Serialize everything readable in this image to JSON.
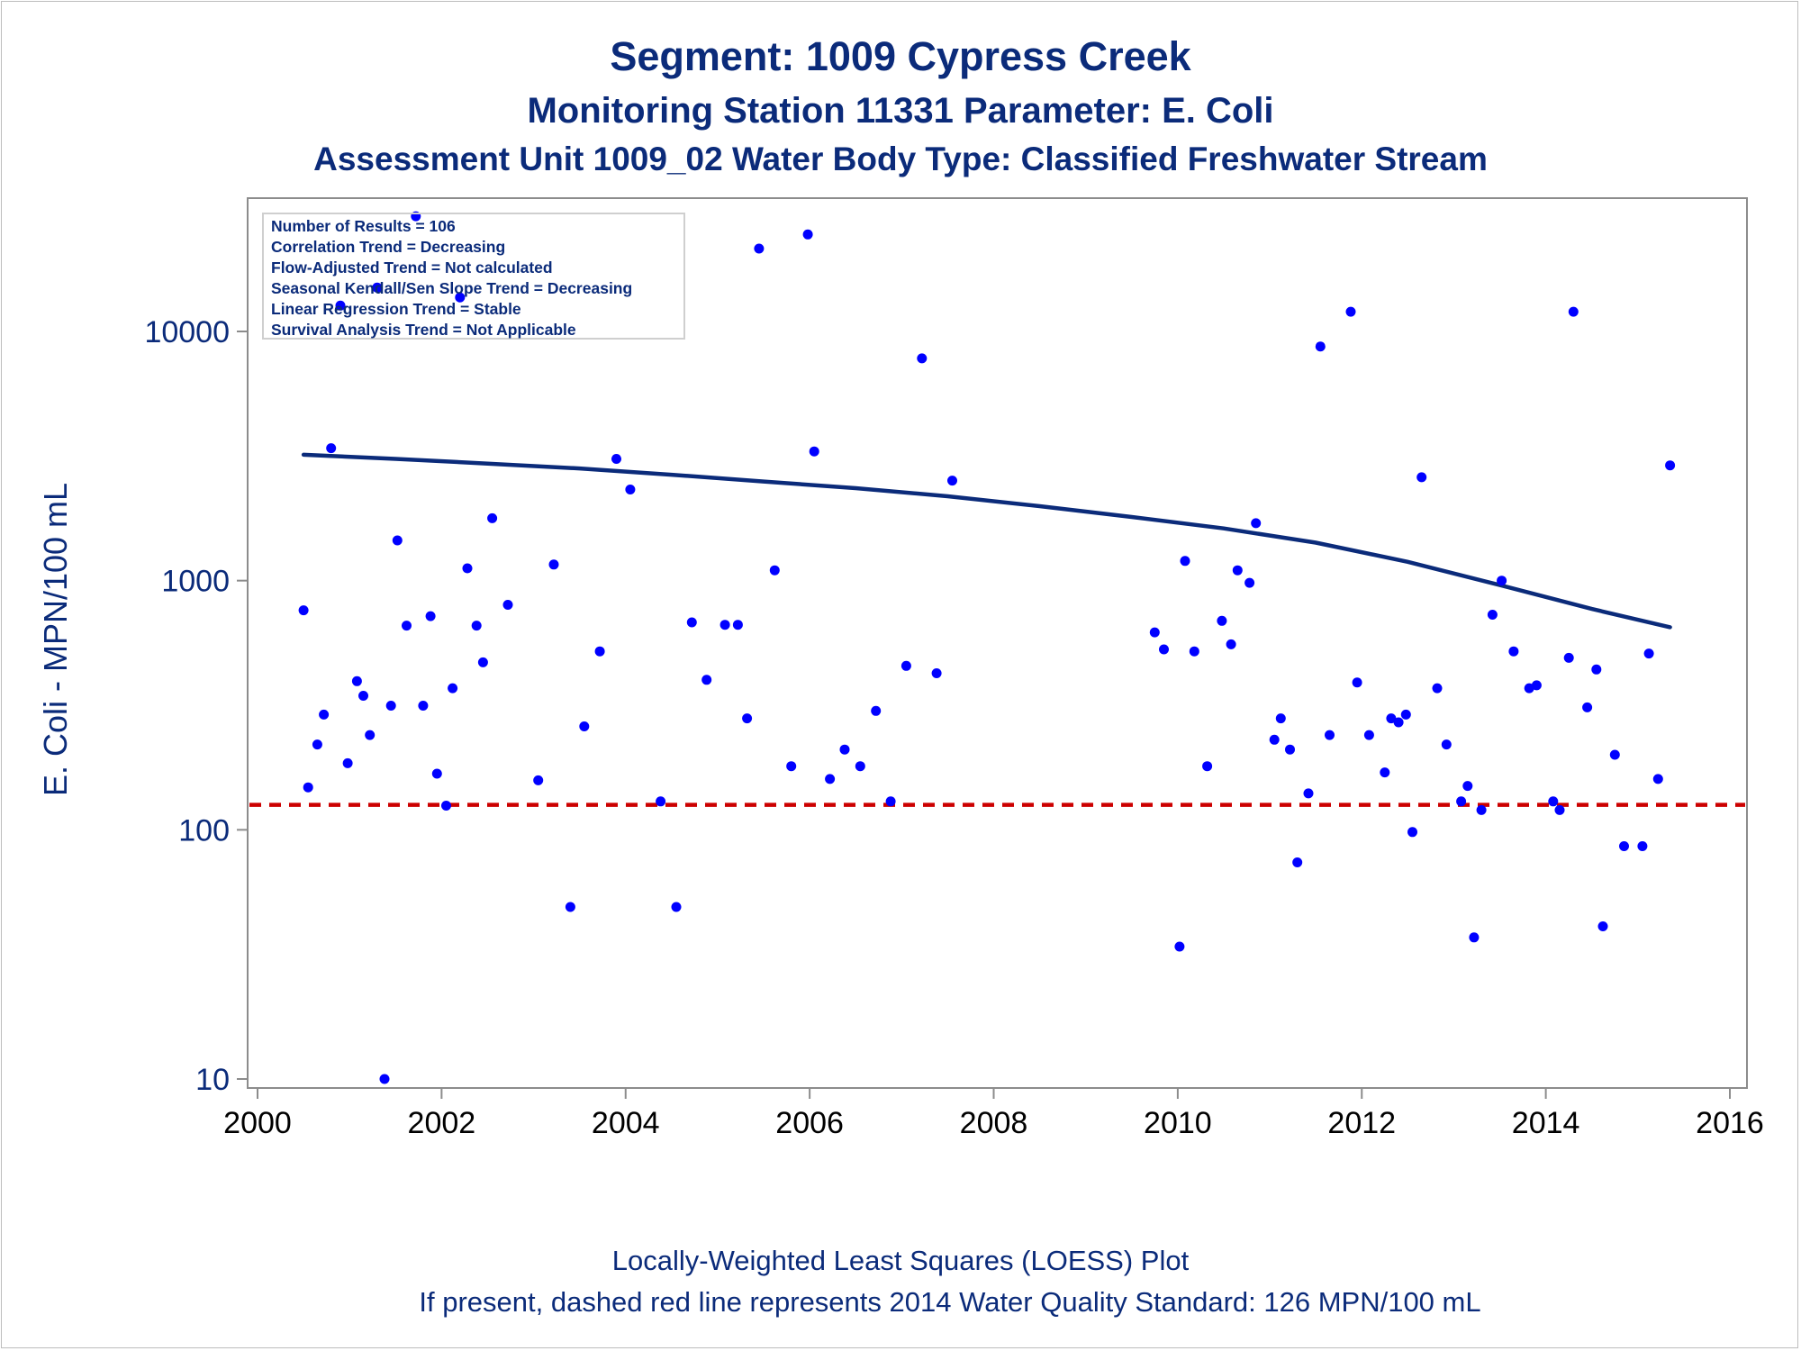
{
  "title": "Segment: 1009  Cypress Creek",
  "subtitle1": "Monitoring Station 11331 Parameter: E. Coli",
  "subtitle2": "Assessment Unit 1009_02   Water Body Type: Classified Freshwater Stream",
  "ylabel": "E. Coli - MPN/100 mL",
  "stats": [
    "Number of Results = 106",
    "Correlation Trend = Decreasing",
    "Flow-Adjusted Trend = Not calculated",
    "Seasonal Kendall/Sen Slope Trend = Decreasing",
    "Linear Regression Trend = Stable",
    "Survival Analysis Trend = Not Applicable"
  ],
  "footnotes": [
    "Locally-Weighted Least Squares (LOESS) Plot",
    "If present, dashed red line represents 2014 Water Quality Standard: 126 MPN/100 mL"
  ],
  "colors": {
    "points": "#0000ff",
    "loess": "#0b2b7a",
    "standard": "#cc0000",
    "text": "#0b2b7a",
    "axis": "#8c8c8c"
  },
  "chart_data": {
    "type": "scatter",
    "x_axis": {
      "type": "date",
      "range": [
        2000,
        2016
      ],
      "ticks": [
        2000,
        2002,
        2004,
        2006,
        2008,
        2010,
        2012,
        2014,
        2016
      ]
    },
    "y_axis": {
      "scale": "log",
      "range": [
        10,
        30000
      ],
      "ticks": [
        10,
        100,
        1000,
        10000
      ]
    },
    "standard_line": {
      "value": 126,
      "style": "dashed"
    },
    "loess": [
      [
        2000.5,
        3200
      ],
      [
        2001.5,
        3080
      ],
      [
        2002.5,
        2950
      ],
      [
        2003.5,
        2820
      ],
      [
        2004.5,
        2660
      ],
      [
        2005.5,
        2500
      ],
      [
        2006.5,
        2350
      ],
      [
        2007.5,
        2180
      ],
      [
        2008.5,
        1990
      ],
      [
        2009.5,
        1800
      ],
      [
        2010.5,
        1620
      ],
      [
        2011.5,
        1420
      ],
      [
        2012.5,
        1190
      ],
      [
        2013.5,
        960
      ],
      [
        2014.5,
        770
      ],
      [
        2015.35,
        650
      ]
    ],
    "points": [
      [
        2000.5,
        760
      ],
      [
        2000.55,
        148
      ],
      [
        2000.65,
        220
      ],
      [
        2000.72,
        290
      ],
      [
        2000.8,
        3400
      ],
      [
        2000.9,
        12700
      ],
      [
        2000.98,
        185
      ],
      [
        2001.08,
        395
      ],
      [
        2001.15,
        345
      ],
      [
        2001.22,
        240
      ],
      [
        2001.3,
        15000
      ],
      [
        2001.38,
        10
      ],
      [
        2001.45,
        315
      ],
      [
        2001.52,
        1450
      ],
      [
        2001.62,
        660
      ],
      [
        2001.72,
        29000
      ],
      [
        2001.8,
        315
      ],
      [
        2001.88,
        720
      ],
      [
        2001.95,
        168
      ],
      [
        2002.05,
        125
      ],
      [
        2002.12,
        370
      ],
      [
        2002.2,
        13700
      ],
      [
        2002.28,
        1120
      ],
      [
        2002.38,
        660
      ],
      [
        2002.45,
        470
      ],
      [
        2002.55,
        1780
      ],
      [
        2002.72,
        800
      ],
      [
        2003.05,
        158
      ],
      [
        2003.22,
        1160
      ],
      [
        2003.4,
        49
      ],
      [
        2003.55,
        260
      ],
      [
        2003.72,
        520
      ],
      [
        2003.9,
        3080
      ],
      [
        2004.05,
        2320
      ],
      [
        2004.38,
        130
      ],
      [
        2004.55,
        49
      ],
      [
        2004.72,
        680
      ],
      [
        2004.88,
        400
      ],
      [
        2005.08,
        665
      ],
      [
        2005.22,
        665
      ],
      [
        2005.32,
        280
      ],
      [
        2005.45,
        21500
      ],
      [
        2005.62,
        1100
      ],
      [
        2005.8,
        180
      ],
      [
        2005.98,
        24500
      ],
      [
        2006.05,
        3300
      ],
      [
        2006.22,
        160
      ],
      [
        2006.38,
        210
      ],
      [
        2006.55,
        180
      ],
      [
        2006.72,
        300
      ],
      [
        2006.88,
        130
      ],
      [
        2007.05,
        455
      ],
      [
        2007.22,
        7800
      ],
      [
        2007.38,
        425
      ],
      [
        2007.55,
        2520
      ],
      [
        2009.75,
        620
      ],
      [
        2009.85,
        530
      ],
      [
        2010.02,
        34
      ],
      [
        2010.08,
        1200
      ],
      [
        2010.18,
        520
      ],
      [
        2010.32,
        180
      ],
      [
        2010.48,
        690
      ],
      [
        2010.58,
        555
      ],
      [
        2010.65,
        1100
      ],
      [
        2010.78,
        980
      ],
      [
        2010.85,
        1700
      ],
      [
        2011.05,
        230
      ],
      [
        2011.12,
        280
      ],
      [
        2011.22,
        210
      ],
      [
        2011.3,
        74
      ],
      [
        2011.42,
        140
      ],
      [
        2011.55,
        8700
      ],
      [
        2011.65,
        240
      ],
      [
        2011.88,
        12000
      ],
      [
        2011.95,
        390
      ],
      [
        2012.08,
        240
      ],
      [
        2012.25,
        170
      ],
      [
        2012.32,
        280
      ],
      [
        2012.4,
        270
      ],
      [
        2012.48,
        290
      ],
      [
        2012.55,
        98
      ],
      [
        2012.65,
        2600
      ],
      [
        2012.82,
        370
      ],
      [
        2012.92,
        220
      ],
      [
        2013.08,
        130
      ],
      [
        2013.15,
        150
      ],
      [
        2013.22,
        37
      ],
      [
        2013.3,
        120
      ],
      [
        2013.42,
        730
      ],
      [
        2013.52,
        1000
      ],
      [
        2013.65,
        520
      ],
      [
        2013.82,
        370
      ],
      [
        2013.9,
        380
      ],
      [
        2014.08,
        130
      ],
      [
        2014.15,
        120
      ],
      [
        2014.25,
        490
      ],
      [
        2014.3,
        12000
      ],
      [
        2014.45,
        310
      ],
      [
        2014.55,
        440
      ],
      [
        2014.62,
        41
      ],
      [
        2014.75,
        200
      ],
      [
        2014.85,
        86
      ],
      [
        2015.05,
        86
      ],
      [
        2015.12,
        510
      ],
      [
        2015.22,
        160
      ],
      [
        2015.35,
        2900
      ]
    ]
  }
}
